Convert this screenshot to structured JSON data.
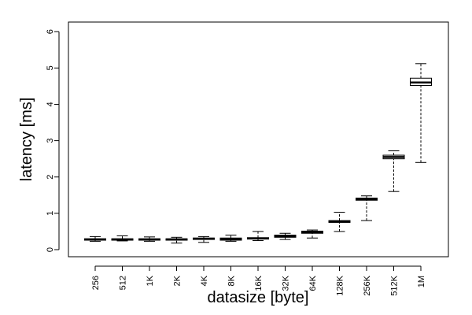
{
  "chart_data": {
    "type": "boxplot",
    "xlabel": "datasize [byte]",
    "ylabel": "latency [ms]",
    "ylim": [
      -0.25,
      6.2
    ],
    "yticks": [
      0,
      1,
      2,
      3,
      4,
      5,
      6
    ],
    "categories": [
      "256",
      "512",
      "1K",
      "2K",
      "4K",
      "8K",
      "16K",
      "32K",
      "64K",
      "128K",
      "256K",
      "512K",
      "1M"
    ],
    "boxes": [
      {
        "min": 0.23,
        "q1": 0.26,
        "median": 0.28,
        "q3": 0.3,
        "max": 0.36
      },
      {
        "min": 0.24,
        "q1": 0.26,
        "median": 0.28,
        "q3": 0.3,
        "max": 0.38
      },
      {
        "min": 0.23,
        "q1": 0.26,
        "median": 0.28,
        "q3": 0.3,
        "max": 0.35
      },
      {
        "min": 0.18,
        "q1": 0.26,
        "median": 0.28,
        "q3": 0.3,
        "max": 0.34
      },
      {
        "min": 0.2,
        "q1": 0.28,
        "median": 0.3,
        "q3": 0.32,
        "max": 0.36
      },
      {
        "min": 0.23,
        "q1": 0.26,
        "median": 0.29,
        "q3": 0.32,
        "max": 0.4
      },
      {
        "min": 0.25,
        "q1": 0.29,
        "median": 0.31,
        "q3": 0.33,
        "max": 0.5
      },
      {
        "min": 0.28,
        "q1": 0.34,
        "median": 0.37,
        "q3": 0.4,
        "max": 0.45
      },
      {
        "min": 0.32,
        "q1": 0.45,
        "median": 0.48,
        "q3": 0.51,
        "max": 0.54
      },
      {
        "min": 0.5,
        "q1": 0.75,
        "median": 0.77,
        "q3": 0.8,
        "max": 1.03
      },
      {
        "min": 0.8,
        "q1": 1.36,
        "median": 1.39,
        "q3": 1.42,
        "max": 1.48
      },
      {
        "min": 1.6,
        "q1": 2.5,
        "median": 2.55,
        "q3": 2.6,
        "max": 2.72
      },
      {
        "min": 2.4,
        "q1": 4.52,
        "median": 4.6,
        "q3": 4.72,
        "max": 5.12
      }
    ],
    "grid": false,
    "legend": "none"
  }
}
